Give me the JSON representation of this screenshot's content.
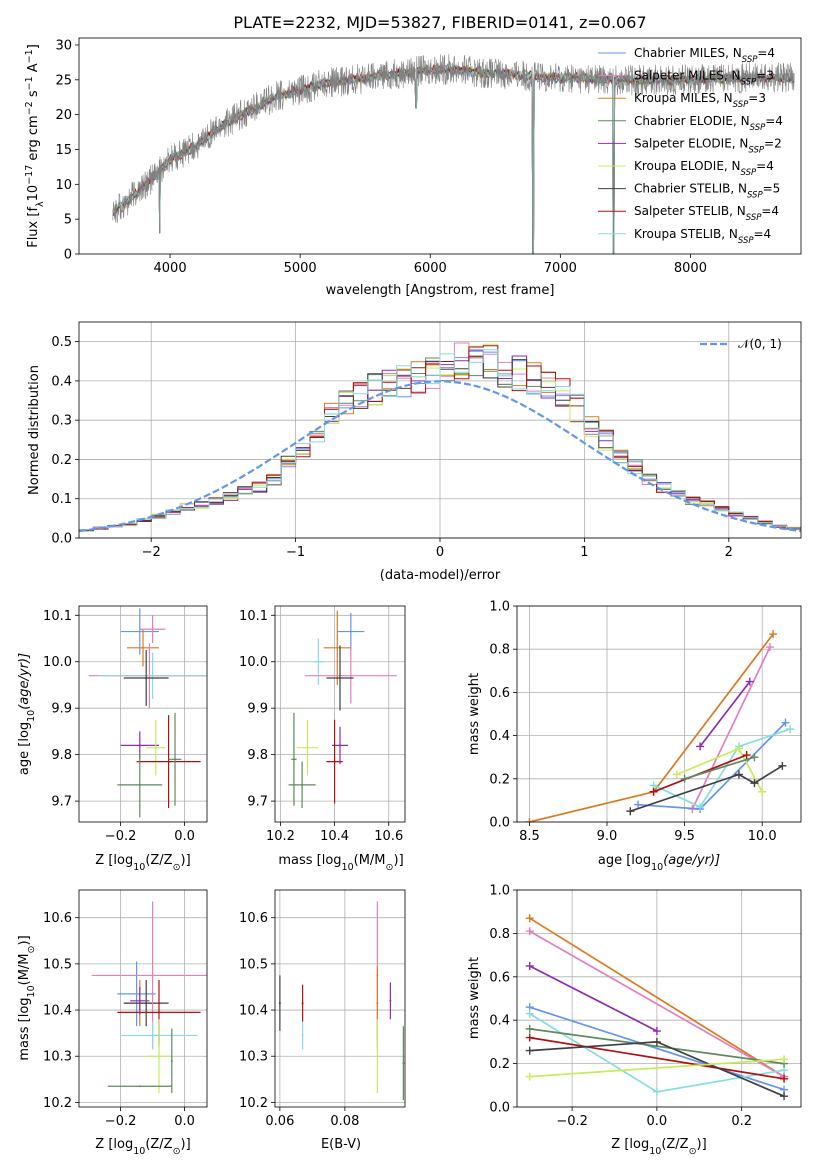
{
  "figure": {
    "title": "PLATE=2232, MJD=53827, FIBERID=0141, z=0.067",
    "colors": {
      "chabrier_miles": "#6495ED",
      "salpeter_miles": "#E37FC0",
      "kroupa_miles": "#D97A20",
      "chabrier_elodie": "#5E8A5E",
      "salpeter_elodie": "#8E2CB0",
      "kroupa_elodie": "#C8EB5A",
      "chabrier_stelib": "#404040",
      "salpeter_stelib": "#B01010",
      "kroupa_stelib": "#86DCE0",
      "data_grey": "#808080",
      "normal_curve": "#6495ED"
    }
  },
  "legend": {
    "labels": [
      "Chabrier MILES, N",
      "Salpeter MILES, N",
      "Kroupa MILES, N",
      "Chabrier ELODIE, N",
      "Salpeter ELODIE, N",
      "Kroupa ELODIE, N",
      "Chabrier STELIB, N",
      "Salpeter STELIB, N",
      "Kroupa STELIB, N"
    ],
    "sub": "SSP",
    "nssp": [
      "=4",
      "=3",
      "=3",
      "=4",
      "=2",
      "=4",
      "=5",
      "=4",
      "=4"
    ],
    "normal_label": "𝒩(0, 1)"
  },
  "axes": {
    "spectrum": {
      "xlabel": "wavelength [Angstrom, rest frame]",
      "ylabel_parts": [
        "Flux [f",
        "λ",
        "10",
        "−17",
        " erg cm",
        "−2",
        " s",
        "−1",
        " A",
        "−1",
        "]"
      ]
    },
    "residuals": {
      "xlabel": "(data-model)/error",
      "ylabel": "Normed distribution"
    },
    "age_z": {
      "xlabel_parts": [
        "Z [log",
        "10",
        "(Z/Z",
        "⊙",
        ")]"
      ],
      "ylabel_parts": [
        "age  [log",
        "10",
        "(age/yr)]"
      ]
    },
    "age_mass": {
      "xlabel_parts": [
        "mass [log",
        "10",
        "(M/M",
        "⊙",
        ")]"
      ]
    },
    "mw_age": {
      "xlabel_parts": [
        "age  [log",
        "10",
        "(age/yr)]"
      ],
      "ylabel": "mass weight"
    },
    "mass_z": {
      "xlabel_parts": [
        "Z [log",
        "10",
        "(Z/Z",
        "⊙",
        ")]"
      ],
      "ylabel_parts": [
        "mass [log",
        "10",
        "(M/M",
        "⊙",
        ")]"
      ]
    },
    "mass_ebv": {
      "xlabel": "E(B-V)"
    },
    "mw_z": {
      "xlabel_parts": [
        "Z [log",
        "10",
        "(Z/Z",
        "⊙",
        ")]"
      ],
      "ylabel": "mass weight"
    }
  },
  "chart_data": [
    {
      "id": "spectrum",
      "type": "line",
      "title": "PLATE=2232, MJD=53827, FIBERID=0141, z=0.067",
      "xlim": [
        3300,
        8850
      ],
      "ylim": [
        0,
        31
      ],
      "xticks": [
        4000,
        5000,
        6000,
        7000,
        8000
      ],
      "yticks": [
        0,
        5,
        10,
        15,
        20,
        25,
        30
      ],
      "grid": false,
      "legend_position": "right",
      "continuum": {
        "x": [
          3560,
          3700,
          3900,
          4000,
          4200,
          4400,
          4600,
          4800,
          5000,
          5200,
          5400,
          5600,
          5800,
          6000,
          6200,
          6400,
          6600,
          6800,
          7000,
          7200,
          7400,
          7600,
          7800,
          8000,
          8200,
          8400,
          8600,
          8800
        ],
        "y": [
          6,
          8,
          11.5,
          13.5,
          15.5,
          18.5,
          20.5,
          22.5,
          23.5,
          24.5,
          25,
          25.5,
          26,
          26.5,
          26.5,
          26,
          25.8,
          25.5,
          25.3,
          25.2,
          25,
          25,
          25,
          25,
          25.2,
          25.3,
          25.3,
          25.3
        ]
      },
      "spikes": [
        {
          "x": 3920,
          "y": 3
        },
        {
          "x": 5890,
          "y": 21
        },
        {
          "x": 6790,
          "y": 0
        },
        {
          "x": 7410,
          "y": 0
        }
      ]
    },
    {
      "id": "residuals",
      "type": "bar",
      "xlim": [
        -2.5,
        2.5
      ],
      "ylim": [
        0,
        0.55
      ],
      "xticks": [
        -2,
        -1,
        0,
        1,
        2
      ],
      "yticks": [
        0.0,
        0.1,
        0.2,
        0.3,
        0.4,
        0.5
      ],
      "grid": true,
      "legend_position": "top-right",
      "bin_start": -2.5,
      "bin_width": 0.1,
      "base_values": [
        0.02,
        0.025,
        0.03,
        0.035,
        0.045,
        0.055,
        0.065,
        0.08,
        0.085,
        0.095,
        0.105,
        0.12,
        0.13,
        0.15,
        0.19,
        0.23,
        0.27,
        0.31,
        0.35,
        0.37,
        0.38,
        0.39,
        0.4,
        0.41,
        0.42,
        0.43,
        0.45,
        0.46,
        0.45,
        0.43,
        0.42,
        0.41,
        0.4,
        0.37,
        0.33,
        0.29,
        0.25,
        0.21,
        0.18,
        0.15,
        0.13,
        0.11,
        0.095,
        0.085,
        0.075,
        0.06,
        0.05,
        0.04,
        0.03,
        0.025
      ],
      "normal_curve": {
        "name": "𝒩(0, 1)",
        "mean": 0,
        "sigma": 1
      }
    },
    {
      "id": "age_z",
      "type": "scatter",
      "xlim": [
        -0.33,
        0.07
      ],
      "ylim": [
        9.655,
        10.12
      ],
      "xticks": [
        -0.2,
        0.0
      ],
      "yticks": [
        9.7,
        9.8,
        9.9,
        10.0,
        10.1
      ],
      "grid": true,
      "points": [
        {
          "x": -0.14,
          "y": 10.065,
          "xerr": 0.06,
          "yerr": 0.05,
          "color": "chabrier_miles"
        },
        {
          "x": -0.13,
          "y": 10.03,
          "xerr": 0.05,
          "yerr": 0.04,
          "color": "kroupa_miles"
        },
        {
          "x": -0.1,
          "y": 10.07,
          "xerr": 0.04,
          "yerr": 0.03,
          "color": "salpeter_miles"
        },
        {
          "x": -0.11,
          "y": 9.97,
          "xerr": 0.19,
          "yerr": 0.07,
          "color": "salpeter_miles"
        },
        {
          "x": -0.1,
          "y": 9.97,
          "xerr": 0.17,
          "yerr": 0.05,
          "color": "kroupa_stelib"
        },
        {
          "x": -0.12,
          "y": 9.965,
          "xerr": 0.07,
          "yerr": 0.06,
          "color": "chabrier_stelib"
        },
        {
          "x": -0.14,
          "y": 9.82,
          "xerr": 0.06,
          "yerr": 0.03,
          "color": "salpeter_elodie"
        },
        {
          "x": -0.09,
          "y": 9.815,
          "xerr": 0.03,
          "yerr": 0.06,
          "color": "kroupa_elodie"
        },
        {
          "x": -0.05,
          "y": 9.785,
          "xerr": 0.1,
          "yerr": 0.1,
          "color": "salpeter_stelib"
        },
        {
          "x": -0.14,
          "y": 9.735,
          "xerr": 0.07,
          "yerr": 0.07,
          "color": "chabrier_elodie"
        },
        {
          "x": -0.03,
          "y": 9.79,
          "xerr": 0.02,
          "yerr": 0.1,
          "color": "chabrier_elodie"
        }
      ]
    },
    {
      "id": "age_mass",
      "type": "scatter",
      "xlim": [
        10.18,
        10.66
      ],
      "ylim": [
        9.655,
        10.12
      ],
      "xticks": [
        10.2,
        10.4,
        10.6
      ],
      "yticks": [
        9.7,
        9.8,
        9.9,
        10.0,
        10.1
      ],
      "grid": true,
      "points": [
        {
          "x": 10.46,
          "y": 10.065,
          "xerr": 0.05,
          "yerr": 0.04,
          "color": "chabrier_miles"
        },
        {
          "x": 10.41,
          "y": 10.03,
          "xerr": 0.05,
          "yerr": 0.08,
          "color": "kroupa_miles"
        },
        {
          "x": 10.34,
          "y": 10.0,
          "xerr": 0.02,
          "yerr": 0.05,
          "color": "kroupa_stelib"
        },
        {
          "x": 10.46,
          "y": 9.97,
          "xerr": 0.17,
          "yerr": 0.06,
          "color": "salpeter_miles"
        },
        {
          "x": 10.42,
          "y": 9.965,
          "xerr": 0.05,
          "yerr": 0.07,
          "color": "chabrier_stelib"
        },
        {
          "x": 10.42,
          "y": 9.82,
          "xerr": 0.03,
          "yerr": 0.04,
          "color": "salpeter_elodie"
        },
        {
          "x": 10.3,
          "y": 9.815,
          "xerr": 0.04,
          "yerr": 0.06,
          "color": "kroupa_elodie"
        },
        {
          "x": 10.4,
          "y": 9.785,
          "xerr": 0.03,
          "yerr": 0.09,
          "color": "salpeter_stelib"
        },
        {
          "x": 10.28,
          "y": 9.735,
          "xerr": 0.05,
          "yerr": 0.05,
          "color": "chabrier_elodie"
        },
        {
          "x": 10.25,
          "y": 9.79,
          "xerr": 0.01,
          "yerr": 0.1,
          "color": "chabrier_elodie"
        }
      ]
    },
    {
      "id": "mw_age",
      "type": "line",
      "xlim": [
        8.42,
        10.25
      ],
      "ylim": [
        0,
        1.0
      ],
      "xticks": [
        8.5,
        9.0,
        9.5,
        10.0
      ],
      "yticks": [
        0.0,
        0.2,
        0.4,
        0.6,
        0.8,
        1.0
      ],
      "grid": true,
      "series": [
        {
          "color": "kroupa_miles",
          "x": [
            8.5,
            9.3,
            10.07
          ],
          "y": [
            0.0,
            0.14,
            0.87
          ]
        },
        {
          "color": "salpeter_miles",
          "x": [
            9.55,
            10.05
          ],
          "y": [
            0.06,
            0.81
          ]
        },
        {
          "color": "salpeter_elodie",
          "x": [
            9.6,
            9.92
          ],
          "y": [
            0.35,
            0.65
          ]
        },
        {
          "color": "chabrier_miles",
          "x": [
            9.2,
            9.6,
            10.15
          ],
          "y": [
            0.08,
            0.06,
            0.46
          ]
        },
        {
          "color": "kroupa_stelib",
          "x": [
            9.3,
            9.6,
            9.85,
            10.18
          ],
          "y": [
            0.17,
            0.07,
            0.35,
            0.43
          ]
        },
        {
          "color": "kroupa_elodie",
          "x": [
            9.45,
            9.85,
            10.0
          ],
          "y": [
            0.22,
            0.34,
            0.14
          ]
        },
        {
          "color": "salpeter_stelib",
          "x": [
            9.3,
            9.9
          ],
          "y": [
            0.14,
            0.31
          ]
        },
        {
          "color": "chabrier_stelib",
          "x": [
            9.15,
            9.85,
            9.95,
            10.13
          ],
          "y": [
            0.05,
            0.22,
            0.18,
            0.26
          ]
        },
        {
          "color": "chabrier_elodie",
          "x": [
            9.5,
            9.95
          ],
          "y": [
            0.2,
            0.3
          ]
        }
      ]
    },
    {
      "id": "mass_z",
      "type": "scatter",
      "xlim": [
        -0.33,
        0.07
      ],
      "ylim": [
        10.19,
        10.66
      ],
      "xticks": [
        -0.2,
        0.0
      ],
      "yticks": [
        10.2,
        10.3,
        10.4,
        10.5,
        10.6
      ],
      "grid": true,
      "points": [
        {
          "x": -0.15,
          "y": 10.435,
          "xerr": 0.06,
          "yerr": 0.07,
          "color": "chabrier_miles"
        },
        {
          "x": -0.14,
          "y": 10.415,
          "xerr": 0.05,
          "yerr": 0.05,
          "color": "kroupa_miles"
        },
        {
          "x": -0.12,
          "y": 10.415,
          "xerr": 0.07,
          "yerr": 0.05,
          "color": "chabrier_stelib"
        },
        {
          "x": -0.1,
          "y": 10.475,
          "xerr": 0.19,
          "yerr": 0.16,
          "color": "salpeter_miles"
        },
        {
          "x": -0.08,
          "y": 10.395,
          "xerr": 0.13,
          "yerr": 0.07,
          "color": "salpeter_stelib"
        },
        {
          "x": -0.14,
          "y": 10.42,
          "xerr": 0.03,
          "yerr": 0.03,
          "color": "salpeter_elodie"
        },
        {
          "x": -0.08,
          "y": 10.345,
          "xerr": 0.12,
          "yerr": 0.03,
          "color": "kroupa_stelib"
        },
        {
          "x": -0.1,
          "y": 10.345,
          "xerr": 0.02,
          "yerr": 0.03,
          "color": "kroupa_stelib"
        },
        {
          "x": -0.08,
          "y": 10.3,
          "xerr": 0.04,
          "yerr": 0.08,
          "color": "kroupa_elodie"
        },
        {
          "x": -0.14,
          "y": 10.235,
          "xerr": 0.1,
          "yerr": 0.0,
          "color": "chabrier_elodie"
        },
        {
          "x": -0.04,
          "y": 10.29,
          "xerr": 0.0,
          "yerr": 0.07,
          "color": "chabrier_elodie"
        }
      ]
    },
    {
      "id": "mass_ebv",
      "type": "scatter",
      "xlim": [
        0.0585,
        0.0985
      ],
      "ylim": [
        10.19,
        10.66
      ],
      "xticks": [
        0.06,
        0.08
      ],
      "yticks": [
        10.2,
        10.3,
        10.4,
        10.5,
        10.6
      ],
      "grid": true,
      "points": [
        {
          "x": 0.06,
          "y": 10.415,
          "xerr": 0,
          "yerr": 0.06,
          "color": "chabrier_stelib"
        },
        {
          "x": 0.067,
          "y": 10.415,
          "xerr": 0,
          "yerr": 0.04,
          "color": "salpeter_stelib"
        },
        {
          "x": 0.067,
          "y": 10.345,
          "xerr": 0,
          "yerr": 0.03,
          "color": "kroupa_stelib"
        },
        {
          "x": 0.09,
          "y": 10.475,
          "xerr": 0,
          "yerr": 0.16,
          "color": "salpeter_miles"
        },
        {
          "x": 0.09,
          "y": 10.415,
          "xerr": 0,
          "yerr": 0.08,
          "color": "kroupa_miles"
        },
        {
          "x": 0.09,
          "y": 10.3,
          "xerr": 0,
          "yerr": 0.08,
          "color": "kroupa_elodie"
        },
        {
          "x": 0.094,
          "y": 10.42,
          "xerr": 0,
          "yerr": 0.04,
          "color": "salpeter_elodie"
        },
        {
          "x": 0.098,
          "y": 10.285,
          "xerr": 0,
          "yerr": 0.08,
          "color": "chabrier_elodie"
        }
      ]
    },
    {
      "id": "mw_z",
      "type": "line",
      "xlim": [
        -0.33,
        0.34
      ],
      "ylim": [
        0,
        1.0
      ],
      "xticks": [
        -0.2,
        0.0,
        0.2
      ],
      "yticks": [
        0.0,
        0.2,
        0.4,
        0.6,
        0.8,
        1.0
      ],
      "grid": true,
      "series": [
        {
          "color": "kroupa_miles",
          "x": [
            -0.3,
            0.3
          ],
          "y": [
            0.87,
            0.14
          ]
        },
        {
          "color": "salpeter_miles",
          "x": [
            -0.3,
            0.3
          ],
          "y": [
            0.81,
            0.14
          ]
        },
        {
          "color": "salpeter_elodie",
          "x": [
            -0.3,
            0.0
          ],
          "y": [
            0.65,
            0.35
          ]
        },
        {
          "color": "chabrier_miles",
          "x": [
            -0.3,
            0.3
          ],
          "y": [
            0.46,
            0.08
          ]
        },
        {
          "color": "kroupa_stelib",
          "x": [
            -0.3,
            0.0,
            0.3
          ],
          "y": [
            0.43,
            0.07,
            0.17
          ]
        },
        {
          "color": "chabrier_elodie",
          "x": [
            -0.3,
            0.3
          ],
          "y": [
            0.36,
            0.2
          ]
        },
        {
          "color": "salpeter_stelib",
          "x": [
            -0.3,
            0.3
          ],
          "y": [
            0.32,
            0.13
          ]
        },
        {
          "color": "chabrier_stelib",
          "x": [
            -0.3,
            0.0,
            0.3
          ],
          "y": [
            0.26,
            0.3,
            0.05
          ]
        },
        {
          "color": "kroupa_elodie",
          "x": [
            -0.3,
            0.3
          ],
          "y": [
            0.14,
            0.22
          ]
        }
      ]
    }
  ]
}
